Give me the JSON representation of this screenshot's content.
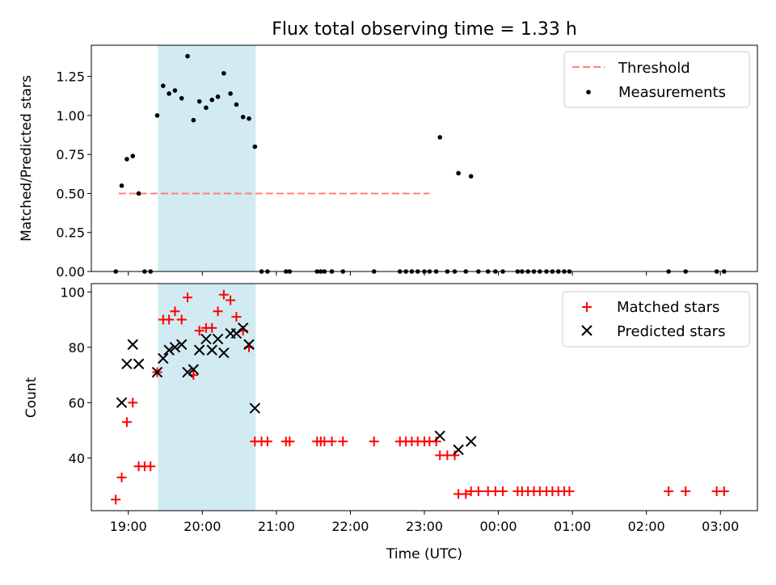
{
  "chart_data": [
    {
      "type": "scatter",
      "title": "Flux total observing time = 1.33 h",
      "ylabel": "Matched/Predicted stars",
      "xlabel": "",
      "ylim": [
        0,
        1.45
      ],
      "yticks": [
        "0.00",
        "0.25",
        "0.50",
        "0.75",
        "1.00",
        "1.25"
      ],
      "shaded_interval_hours": [
        19.4,
        20.72
      ],
      "shade_color": "#add8e6",
      "threshold": {
        "name": "Threshold",
        "value": 0.5,
        "x_range": [
          18.87,
          23.07
        ],
        "color": "#ff7f7f"
      },
      "measurements": {
        "name": "Measurements",
        "color": "#000000",
        "points": [
          [
            18.83,
            0
          ],
          [
            18.91,
            0.55
          ],
          [
            18.98,
            0.72
          ],
          [
            19.06,
            0.74
          ],
          [
            19.14,
            0.5
          ],
          [
            19.22,
            0
          ],
          [
            19.3,
            0
          ],
          [
            19.39,
            1.0
          ],
          [
            19.47,
            1.19
          ],
          [
            19.55,
            1.14
          ],
          [
            19.63,
            1.16
          ],
          [
            19.72,
            1.11
          ],
          [
            19.8,
            1.38
          ],
          [
            19.88,
            0.97
          ],
          [
            19.96,
            1.09
          ],
          [
            20.05,
            1.05
          ],
          [
            20.13,
            1.1
          ],
          [
            20.21,
            1.12
          ],
          [
            20.29,
            1.27
          ],
          [
            20.38,
            1.14
          ],
          [
            20.46,
            1.07
          ],
          [
            20.55,
            0.99
          ],
          [
            20.63,
            0.98
          ],
          [
            20.71,
            0.8
          ],
          [
            20.8,
            0
          ],
          [
            20.88,
            0
          ],
          [
            21.13,
            0
          ],
          [
            21.18,
            0
          ],
          [
            21.55,
            0
          ],
          [
            21.6,
            0
          ],
          [
            21.65,
            0
          ],
          [
            21.75,
            0
          ],
          [
            21.9,
            0
          ],
          [
            22.32,
            0
          ],
          [
            22.67,
            0
          ],
          [
            22.75,
            0
          ],
          [
            22.83,
            0
          ],
          [
            22.91,
            0
          ],
          [
            23.0,
            0
          ],
          [
            23.07,
            0
          ],
          [
            23.16,
            0
          ],
          [
            23.21,
            0.86
          ],
          [
            23.31,
            0
          ],
          [
            23.41,
            0
          ],
          [
            23.46,
            0.63
          ],
          [
            23.56,
            0
          ],
          [
            23.63,
            0.61
          ],
          [
            23.73,
            0
          ],
          [
            23.86,
            0
          ],
          [
            23.96,
            0
          ],
          [
            24.06,
            0
          ],
          [
            24.26,
            0
          ],
          [
            24.32,
            0
          ],
          [
            24.4,
            0
          ],
          [
            24.48,
            0
          ],
          [
            24.56,
            0
          ],
          [
            24.65,
            0
          ],
          [
            24.73,
            0
          ],
          [
            24.81,
            0
          ],
          [
            24.89,
            0
          ],
          [
            24.96,
            0
          ],
          [
            26.3,
            0
          ],
          [
            26.53,
            0
          ],
          [
            26.95,
            0
          ],
          [
            27.05,
            0
          ]
        ]
      },
      "legend": {
        "placement": "top-right",
        "entries": [
          "Threshold",
          "Measurements"
        ]
      }
    },
    {
      "type": "scatter",
      "title": "",
      "ylabel": "Count",
      "xlabel": "Time (UTC)",
      "ylim": [
        21,
        103
      ],
      "yticks": [
        "40",
        "60",
        "80",
        "100"
      ],
      "xlim_hours": [
        18.5,
        27.5
      ],
      "xticks": [
        "19:00",
        "20:00",
        "21:00",
        "22:00",
        "23:00",
        "00:00",
        "01:00",
        "02:00",
        "03:00"
      ],
      "shaded_interval_hours": [
        19.4,
        20.72
      ],
      "matched": {
        "name": "Matched stars",
        "color": "#ff0000",
        "points": [
          [
            18.83,
            25
          ],
          [
            18.91,
            33
          ],
          [
            18.98,
            53
          ],
          [
            19.06,
            60
          ],
          [
            19.14,
            37
          ],
          [
            19.22,
            37
          ],
          [
            19.3,
            37
          ],
          [
            19.39,
            71
          ],
          [
            19.47,
            90
          ],
          [
            19.55,
            90
          ],
          [
            19.63,
            93
          ],
          [
            19.72,
            90
          ],
          [
            19.8,
            98
          ],
          [
            19.88,
            70
          ],
          [
            19.96,
            86
          ],
          [
            20.05,
            87
          ],
          [
            20.13,
            87
          ],
          [
            20.21,
            93
          ],
          [
            20.29,
            99
          ],
          [
            20.38,
            97
          ],
          [
            20.46,
            91
          ],
          [
            20.55,
            86
          ],
          [
            20.63,
            80
          ],
          [
            20.71,
            46
          ],
          [
            20.8,
            46
          ],
          [
            20.88,
            46
          ],
          [
            21.13,
            46
          ],
          [
            21.18,
            46
          ],
          [
            21.55,
            46
          ],
          [
            21.6,
            46
          ],
          [
            21.65,
            46
          ],
          [
            21.75,
            46
          ],
          [
            21.9,
            46
          ],
          [
            22.32,
            46
          ],
          [
            22.67,
            46
          ],
          [
            22.75,
            46
          ],
          [
            22.83,
            46
          ],
          [
            22.91,
            46
          ],
          [
            23.0,
            46
          ],
          [
            23.07,
            46
          ],
          [
            23.16,
            46
          ],
          [
            23.21,
            41
          ],
          [
            23.31,
            41
          ],
          [
            23.41,
            41
          ],
          [
            23.46,
            27
          ],
          [
            23.56,
            27
          ],
          [
            23.63,
            28
          ],
          [
            23.73,
            28
          ],
          [
            23.86,
            28
          ],
          [
            23.96,
            28
          ],
          [
            24.06,
            28
          ],
          [
            24.26,
            28
          ],
          [
            24.32,
            28
          ],
          [
            24.4,
            28
          ],
          [
            24.48,
            28
          ],
          [
            24.56,
            28
          ],
          [
            24.65,
            28
          ],
          [
            24.73,
            28
          ],
          [
            24.81,
            28
          ],
          [
            24.89,
            28
          ],
          [
            24.96,
            28
          ],
          [
            26.3,
            28
          ],
          [
            26.53,
            28
          ],
          [
            26.95,
            28
          ],
          [
            27.05,
            28
          ]
        ]
      },
      "predicted": {
        "name": "Predicted stars",
        "color": "#000000",
        "points": [
          [
            18.91,
            60
          ],
          [
            18.98,
            74
          ],
          [
            19.06,
            81
          ],
          [
            19.14,
            74
          ],
          [
            19.39,
            71
          ],
          [
            19.47,
            76
          ],
          [
            19.55,
            79
          ],
          [
            19.63,
            80
          ],
          [
            19.72,
            81
          ],
          [
            19.8,
            71
          ],
          [
            19.88,
            72
          ],
          [
            19.96,
            79
          ],
          [
            20.05,
            83
          ],
          [
            20.13,
            79
          ],
          [
            20.21,
            83
          ],
          [
            20.29,
            78
          ],
          [
            20.38,
            85
          ],
          [
            20.46,
            85
          ],
          [
            20.55,
            87
          ],
          [
            20.63,
            81
          ],
          [
            20.71,
            58
          ],
          [
            23.21,
            48
          ],
          [
            23.46,
            43
          ],
          [
            23.63,
            46
          ]
        ]
      },
      "legend": {
        "placement": "top-right",
        "entries": [
          "Matched stars",
          "Predicted stars"
        ]
      }
    }
  ]
}
